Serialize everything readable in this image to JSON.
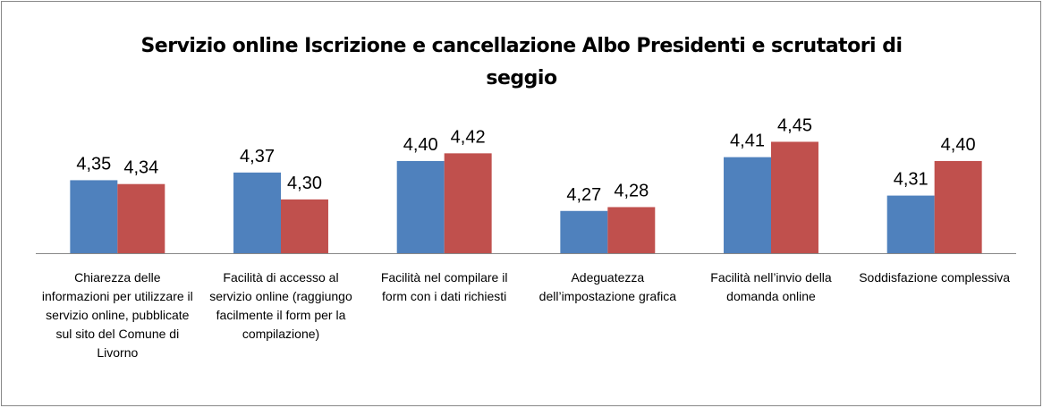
{
  "chart_data": {
    "type": "bar",
    "title": "Servizio online Iscrizione e cancellazione Albo Presidenti e scrutatori di seggio",
    "categories": [
      "Chiarezza delle informazioni per utilizzare il servizio online, pubblicate sul sito del Comune di Livorno",
      "Facilità di accesso al servizio online (raggiungo facilmente il form per la compilazione)",
      "Facilità nel compilare il form con i dati richiesti",
      "Adeguatezza dell’impostazione grafica",
      "Facilità nell’invio della domanda online",
      "Soddisfazione complessiva"
    ],
    "series": [
      {
        "color": "#4f81bd",
        "values": [
          4.35,
          4.37,
          4.4,
          4.27,
          4.41,
          4.31
        ],
        "value_labels": [
          "4,35",
          "4,37",
          "4,40",
          "4,27",
          "4,41",
          "4,31"
        ]
      },
      {
        "color": "#c0504d",
        "values": [
          4.34,
          4.3,
          4.42,
          4.28,
          4.45,
          4.4
        ],
        "value_labels": [
          "4,34",
          "4,30",
          "4,42",
          "4,28",
          "4,45",
          "4,40"
        ]
      }
    ],
    "ylim": [
      4.16,
      4.5
    ]
  }
}
